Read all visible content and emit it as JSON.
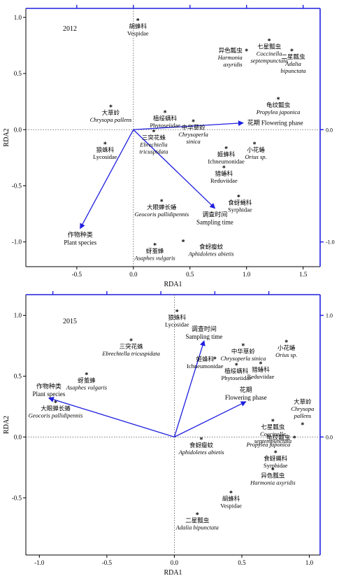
{
  "chart_data": [
    {
      "type": "scatter",
      "title": "2012",
      "xlabel": "RDA1",
      "ylabel": "RDA2",
      "xlim": [
        -0.95,
        1.65
      ],
      "ylim": [
        -1.22,
        1.08
      ],
      "x_ticks": [
        "-0.5",
        "0.0",
        "0.5",
        "1.0",
        "1.5"
      ],
      "x_tick_values": [
        -0.5,
        0,
        0.5,
        1.0,
        1.5
      ],
      "y_ticks": [
        "-1.0",
        "-0.5",
        "0.0",
        "0.5",
        "1.0"
      ],
      "y_tick_values": [
        -1.0,
        -0.5,
        0,
        0.5,
        1.0
      ],
      "right_ticks": [
        "-1.0",
        "0.0"
      ],
      "right_tick_values": [
        -1.0,
        0
      ],
      "top_tick_values": [
        -0.5,
        0.0,
        0.5,
        1.0,
        1.5
      ],
      "grid": false,
      "species": [
        {
          "cn": "胡蜂科",
          "en": "Vespidae",
          "x": 0.04,
          "y": 0.97,
          "italic": false,
          "pos": "below"
        },
        {
          "cn": "异色瓢虫",
          "en": "Harmonia\naxyridis",
          "x": 1.0,
          "y": 0.7,
          "italic": true,
          "pos": "left"
        },
        {
          "cn": "七星瓢虫",
          "en": "Coccinella\nseptempunctata",
          "x": 1.2,
          "y": 0.79,
          "italic": true,
          "pos": "below"
        },
        {
          "cn": "二星瓢虫",
          "en": "Adalia\nbipunctata",
          "x": 1.4,
          "y": 0.7,
          "italic": true,
          "pos": "belowright"
        },
        {
          "cn": "龟纹瓢虫",
          "en": "Propylea japonica",
          "x": 1.28,
          "y": 0.27,
          "italic": true,
          "pos": "below"
        },
        {
          "cn": "大草蛉",
          "en": "Chrysopa pallens",
          "x": -0.2,
          "y": 0.2,
          "italic": true,
          "pos": "below"
        },
        {
          "cn": "植绥螨科",
          "en": "Phytoseiidae",
          "x": 0.28,
          "y": 0.15,
          "italic": false,
          "pos": "below"
        },
        {
          "cn": "中华草蛉",
          "en": "Chrysoperla\nsinica",
          "x": 0.53,
          "y": 0.07,
          "italic": true,
          "pos": "below"
        },
        {
          "cn": "三突花蛛",
          "en": "Ebrechtella\ntricuspidata",
          "x": 0.18,
          "y": -0.02,
          "italic": true,
          "pos": "below"
        },
        {
          "cn": "狼蛛科",
          "en": "Lycosidae",
          "x": -0.25,
          "y": -0.13,
          "italic": false,
          "pos": "below"
        },
        {
          "cn": "姬蜂科",
          "en": "Ichneumonidae",
          "x": 0.82,
          "y": -0.17,
          "italic": false,
          "pos": "below"
        },
        {
          "cn": "小花蝽",
          "en": "Orius sp.",
          "x": 1.07,
          "y": -0.13,
          "italic": true,
          "pos": "belowright"
        },
        {
          "cn": "猎蝽科",
          "en": "Reduviidae",
          "x": 0.8,
          "y": -0.34,
          "italic": false,
          "pos": "below"
        },
        {
          "cn": "食蚜蝇科",
          "en": "Syrphidae",
          "x": 0.93,
          "y": -0.6,
          "italic": false,
          "pos": "belowright"
        },
        {
          "cn": "大眼蝉长蝽",
          "en": "Geocoris pallidipennis",
          "x": 0.25,
          "y": -0.64,
          "italic": true,
          "pos": "below"
        },
        {
          "cn": "食蚜瘿蚊",
          "en": "Aphidoletes abietis",
          "x": 0.44,
          "y": -1.0,
          "italic": true,
          "pos": "belowright2"
        },
        {
          "cn": "蚜茧蜂",
          "en": "Asaphes vulgaris",
          "x": 0.19,
          "y": -1.03,
          "italic": true,
          "pos": "below"
        }
      ],
      "environment": [
        {
          "cn": "花期",
          "en": "Flowering phase",
          "x": 0.97,
          "y": 0.06,
          "pos": "right"
        },
        {
          "cn": "调查时间",
          "en": "Sampling time",
          "x": 0.72,
          "y": -0.7,
          "pos": "below"
        },
        {
          "cn": "作物种类",
          "en": "Plant species",
          "x": -0.47,
          "y": -0.88,
          "pos": "below"
        }
      ]
    },
    {
      "type": "scatter",
      "title": "2015",
      "xlabel": "RDA1",
      "ylabel": "RDA2",
      "xlim": [
        -1.1,
        1.08
      ],
      "ylim": [
        -0.97,
        1.17
      ],
      "x_ticks": [
        "-1.0",
        "-0.5",
        "0.0",
        "0.5",
        "1.0"
      ],
      "x_tick_values": [
        -1.0,
        -0.5,
        0,
        0.5,
        1.0
      ],
      "y_ticks": [
        "-0.5",
        "0.0",
        "0.5",
        "1.0"
      ],
      "y_tick_values": [
        -0.5,
        0,
        0.5,
        1.0
      ],
      "right_ticks": [
        "0.0",
        "1.0"
      ],
      "right_tick_values": [
        0,
        1.0
      ],
      "top_tick_values": [
        -0.9,
        -0.5,
        -0.1,
        0.3,
        0.7
      ],
      "grid": false,
      "species": [
        {
          "cn": "狼蛛科",
          "en": "Lycosidae",
          "x": 0.02,
          "y": 1.03,
          "italic": false,
          "pos": "below"
        },
        {
          "cn": "三突花蛛",
          "en": "Ebrechtella tricuspidata",
          "x": -0.32,
          "y": 0.79,
          "italic": true,
          "pos": "below"
        },
        {
          "cn": "中华草蛉",
          "en": "Chrysoperla sinica",
          "x": 0.51,
          "y": 0.75,
          "italic": true,
          "pos": "below"
        },
        {
          "cn": "小花蝽",
          "en": "Orius sp.",
          "x": 0.83,
          "y": 0.78,
          "italic": true,
          "pos": "below"
        },
        {
          "cn": "姬蜂科",
          "en": "Ichneumonidae",
          "x": 0.3,
          "y": 0.64,
          "italic": false,
          "pos": "leftbelow"
        },
        {
          "cn": "植绥螨科",
          "en": "Phytoseiidae",
          "x": 0.46,
          "y": 0.59,
          "italic": false,
          "pos": "below"
        },
        {
          "cn": "猎蝽科",
          "en": "Reduviidae",
          "x": 0.64,
          "y": 0.6,
          "italic": false,
          "pos": "below"
        },
        {
          "cn": "蚜茧蜂",
          "en": "Asaphes vulgaris",
          "x": -0.65,
          "y": 0.51,
          "italic": true,
          "pos": "below"
        },
        {
          "cn": "大眼蝉长蝽",
          "en": "Geocoris pallidipennis",
          "x": -0.88,
          "y": 0.28,
          "italic": true,
          "pos": "below"
        },
        {
          "cn": "大草蛉",
          "en": "Chrysopa\npallens",
          "x": 0.95,
          "y": 0.1,
          "italic": true,
          "pos": "above"
        },
        {
          "cn": "七星瓢虫",
          "en": "Coccinella\nseptempunctata",
          "x": 0.73,
          "y": 0.13,
          "italic": true,
          "pos": "below"
        },
        {
          "cn": "龟纹瓢虫",
          "en": "Propylea japonica",
          "x": 0.89,
          "y": -0.01,
          "italic": true,
          "pos": "left"
        },
        {
          "cn": "食蚜蝇科",
          "en": "Syrphidae",
          "x": 0.75,
          "y": -0.13,
          "italic": false,
          "pos": "below"
        },
        {
          "cn": "异色瓢虫",
          "en": "Harmonia axyridis",
          "x": 0.73,
          "y": -0.27,
          "italic": true,
          "pos": "below"
        },
        {
          "cn": "食蚜瘿蚊",
          "en": "Aphidoletes abietis",
          "x": 0.2,
          "y": -0.02,
          "italic": true,
          "pos": "below"
        },
        {
          "cn": "胡蜂科",
          "en": "Vespidae",
          "x": 0.42,
          "y": -0.46,
          "italic": false,
          "pos": "below"
        },
        {
          "cn": "二星瓢虫",
          "en": "Adalia bipunctata",
          "x": 0.17,
          "y": -0.64,
          "italic": true,
          "pos": "below"
        }
      ],
      "environment": [
        {
          "cn": "调查时间",
          "en": "Sampling time",
          "x": 0.22,
          "y": 0.79,
          "pos": "above"
        },
        {
          "cn": "花期",
          "en": "Flowering phase",
          "x": 0.53,
          "y": 0.29,
          "pos": "above"
        },
        {
          "cn": "作物种类",
          "en": "Plant species",
          "x": -0.93,
          "y": 0.32,
          "pos": "above"
        }
      ]
    }
  ]
}
